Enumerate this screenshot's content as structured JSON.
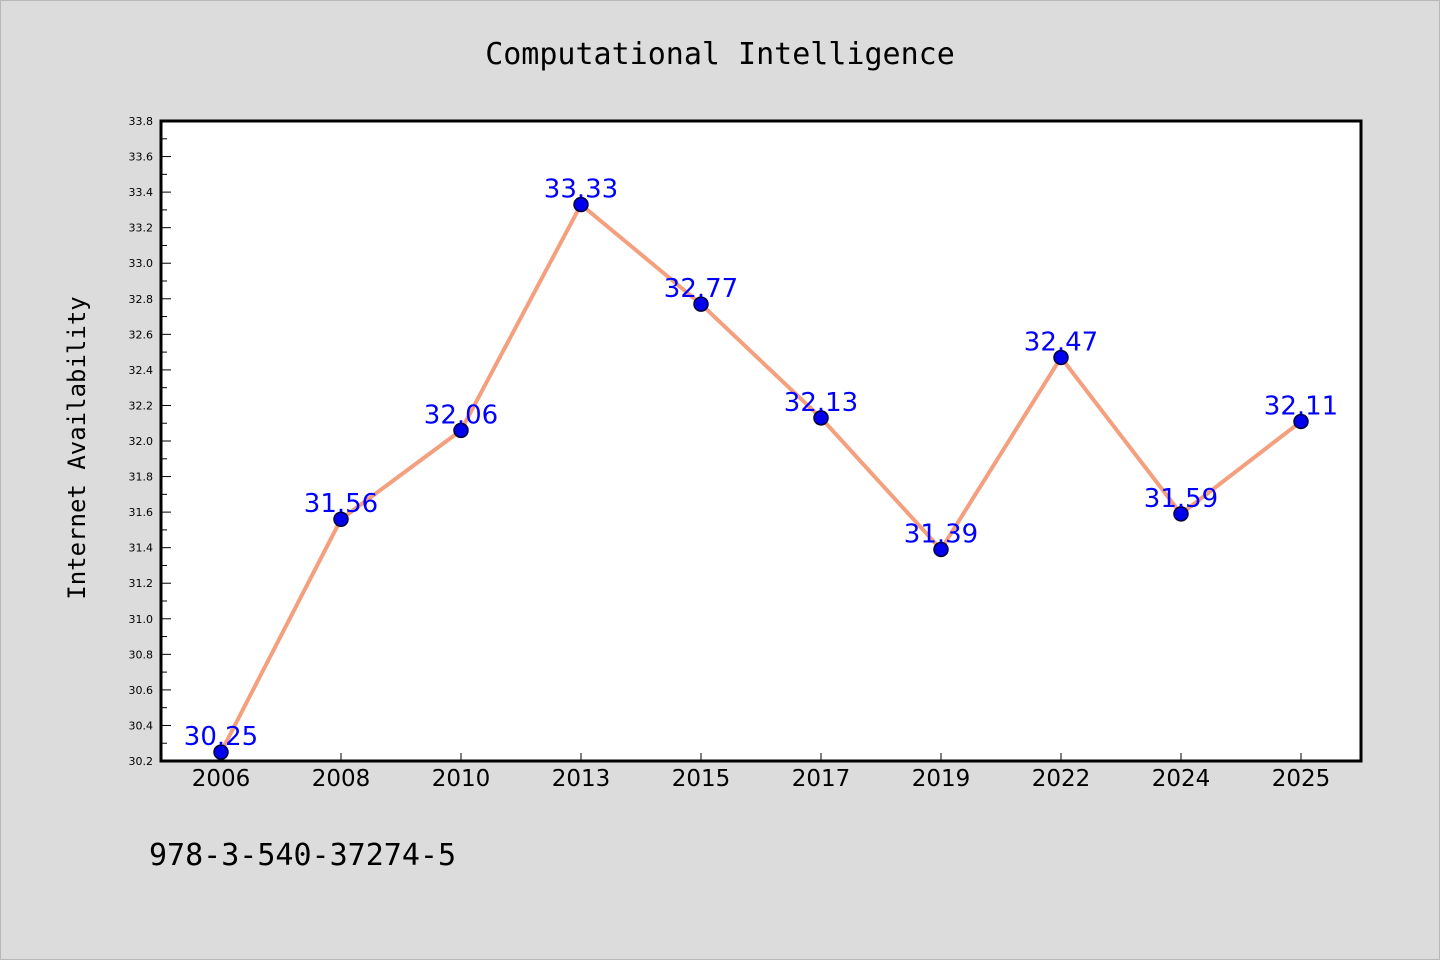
{
  "chart_data": {
    "type": "line",
    "title": "Computational Intelligence",
    "xlabel": "",
    "ylabel": "Internet Availability",
    "categories": [
      "2006",
      "2008",
      "2010",
      "2013",
      "2015",
      "2017",
      "2019",
      "2022",
      "2024",
      "2025"
    ],
    "series": [
      {
        "values": [
          30.25,
          31.56,
          32.06,
          33.33,
          32.77,
          32.13,
          31.39,
          32.47,
          31.59,
          32.11
        ],
        "data_labels": [
          "30.25",
          "31.56",
          "32.06",
          "33.33",
          "32.77",
          "32.13",
          "31.39",
          "32.47",
          "31.59",
          "32.11"
        ],
        "line_color": "#f4a07e",
        "marker_color": "#0000ee",
        "label_color": "#0000ff"
      }
    ],
    "ylim": [
      30.2,
      33.8
    ],
    "yticks": [
      "30.2",
      "30.4",
      "30.6",
      "30.8",
      "31.0",
      "31.2",
      "31.4",
      "31.6",
      "31.8",
      "32.0",
      "32.2",
      "32.4",
      "32.6",
      "32.8",
      "33.0",
      "33.2",
      "33.4",
      "33.6",
      "33.8"
    ],
    "grid": false,
    "legend": "none"
  },
  "footer": {
    "isbn": "978-3-540-37274-5"
  },
  "colors": {
    "background": "#dcdcdc",
    "plot_background": "#ffffff",
    "axis": "#000000"
  }
}
